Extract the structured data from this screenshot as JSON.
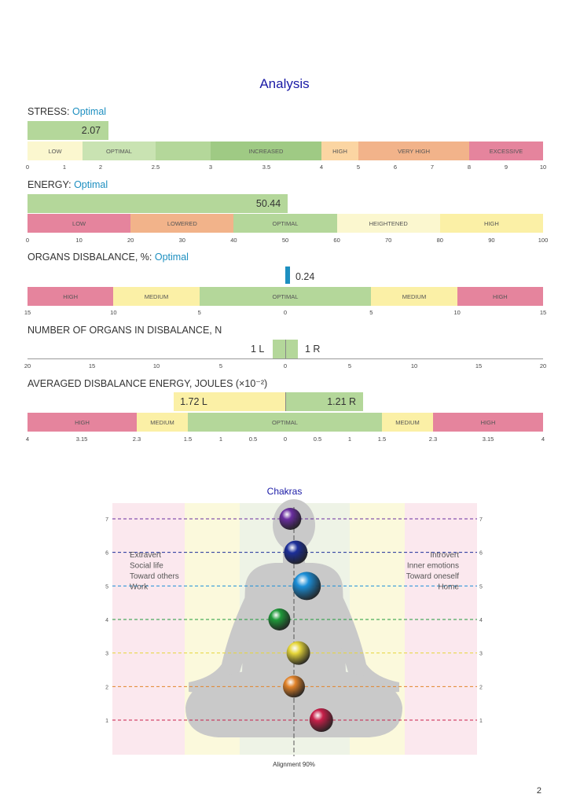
{
  "title": "Analysis",
  "stress": {
    "label": "STRESS:",
    "status": "Optimal",
    "value": "2.07",
    "value_num": 2.07,
    "min": 0,
    "max": 10,
    "bands": [
      {
        "label": "LOW",
        "from": 0,
        "to": 1.5,
        "color": "#fbf7cf"
      },
      {
        "label": "OPTIMAL",
        "from": 1.5,
        "to": 2.5,
        "color": "#c9e3b2"
      },
      {
        "label": "",
        "from": 2.5,
        "to": 3,
        "color": "#b4d79a"
      },
      {
        "label": "INCREASED",
        "from": 3,
        "to": 4,
        "color": "#9fca84"
      },
      {
        "label": "HIGH",
        "from": 4,
        "to": 5,
        "color": "#fbd5a2"
      },
      {
        "label": "VERY HIGH",
        "from": 5,
        "to": 8,
        "color": "#f2b38a"
      },
      {
        "label": "EXCESSIVE",
        "from": 8,
        "to": 10,
        "color": "#e5849d"
      }
    ],
    "ticks": [
      "0",
      "1",
      "2",
      "2.5",
      "3",
      "3.5",
      "4",
      "5",
      "6",
      "7",
      "8",
      "9",
      "10"
    ]
  },
  "energy": {
    "label": "ENERGY:",
    "status": "Optimal",
    "value": "50.44",
    "value_num": 50.44,
    "min": 0,
    "max": 100,
    "bands": [
      {
        "label": "LOW",
        "from": 0,
        "to": 20,
        "color": "#e5849d"
      },
      {
        "label": "LOWERED",
        "from": 20,
        "to": 40,
        "color": "#f2b38a"
      },
      {
        "label": "OPTIMAL",
        "from": 40,
        "to": 60,
        "color": "#b4d79a"
      },
      {
        "label": "HEIGHTENED",
        "from": 60,
        "to": 80,
        "color": "#fbf7cf"
      },
      {
        "label": "HIGH",
        "from": 80,
        "to": 100,
        "color": "#fbf0a6"
      }
    ],
    "ticks": [
      "0",
      "10",
      "20",
      "30",
      "40",
      "50",
      "60",
      "70",
      "80",
      "90",
      "100"
    ]
  },
  "organs": {
    "label": "ORGANS DISBALANCE, %:",
    "status": "Optimal",
    "value": "0.24",
    "value_num": 0.24,
    "bands": [
      {
        "label": "HIGH",
        "from": -15,
        "to": -10,
        "color": "#e5849d"
      },
      {
        "label": "MEDIUM",
        "from": -10,
        "to": -5,
        "color": "#fbf0a6"
      },
      {
        "label": "OPTIMAL",
        "from": -5,
        "to": 5,
        "color": "#b4d79a"
      },
      {
        "label": "MEDIUM",
        "from": 5,
        "to": 10,
        "color": "#fbf0a6"
      },
      {
        "label": "HIGH",
        "from": 10,
        "to": 15,
        "color": "#e5849d"
      }
    ],
    "ticks": [
      "15",
      "10",
      "5",
      "0",
      "5",
      "10",
      "15"
    ]
  },
  "number": {
    "label": "NUMBER OF ORGANS IN DISBALANCE, N",
    "left": "1 L",
    "right": "1 R",
    "left_num": 1,
    "right_num": 1,
    "ticks": [
      "20",
      "15",
      "10",
      "5",
      "0",
      "5",
      "10",
      "15",
      "20"
    ]
  },
  "averaged": {
    "label": "AVERAGED DISBALANCE ENERGY, JOULES (×10⁻²)",
    "left": "1.72 L",
    "right": "1.21 R",
    "left_num": 1.72,
    "right_num": 1.21,
    "bands": [
      {
        "label": "HIGH",
        "from": -4,
        "to": -2.3,
        "color": "#e5849d"
      },
      {
        "label": "MEDIUM",
        "from": -2.3,
        "to": -1.5,
        "color": "#fbf0a6"
      },
      {
        "label": "OPTIMAL",
        "from": -1.5,
        "to": 1.5,
        "color": "#b4d79a"
      },
      {
        "label": "MEDIUM",
        "from": 1.5,
        "to": 2.3,
        "color": "#fbf0a6"
      },
      {
        "label": "HIGH",
        "from": 2.3,
        "to": 4,
        "color": "#e5849d"
      }
    ],
    "ticks": [
      "4",
      "3.15",
      "2.3",
      "1.5",
      "1",
      "0.5",
      "0",
      "0.5",
      "1",
      "1.5",
      "2.3",
      "3.15",
      "4"
    ]
  },
  "chakras": {
    "title": "Chakras",
    "left_text": [
      "Extravert",
      "Social life",
      "Toward others",
      "Work"
    ],
    "right_text": [
      "Introvert",
      "Inner emotions",
      "Toward oneself",
      "Home"
    ],
    "alignment": "Alignment 90%",
    "levels": [
      {
        "n": "7",
        "color": "#6a2ea0",
        "offset": -0.1
      },
      {
        "n": "6",
        "color": "#1c2f9a",
        "offset": 0.05
      },
      {
        "n": "5",
        "color": "#1c8fd8",
        "offset": 0.35
      },
      {
        "n": "4",
        "color": "#1f9a3a",
        "offset": -0.4
      },
      {
        "n": "3",
        "color": "#e6d63a",
        "offset": 0.12
      },
      {
        "n": "2",
        "color": "#e2832a",
        "offset": 0.0
      },
      {
        "n": "1",
        "color": "#c8204a",
        "offset": 0.75
      }
    ]
  },
  "page_number": "2"
}
